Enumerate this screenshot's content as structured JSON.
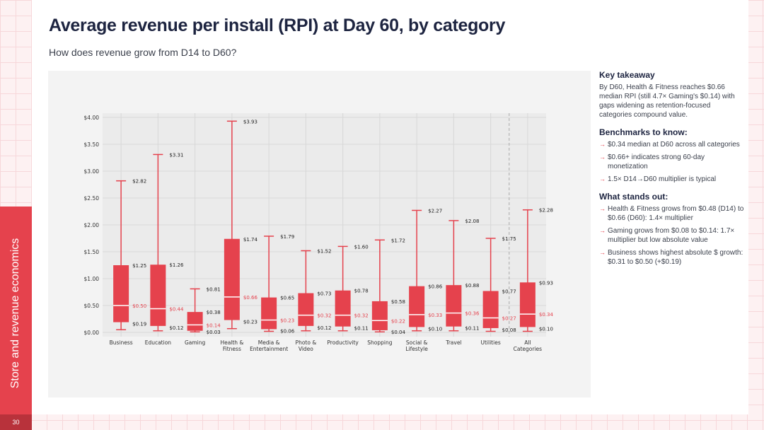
{
  "title": "Average revenue per install (RPI) at Day 60, by category",
  "subtitle": "How does revenue grow from D14 to D60?",
  "sidebar_label": "Store and revenue economics",
  "page_number": "30",
  "accent_color": "#e5424d",
  "takeaway": {
    "heading": "Key takeaway",
    "text": "By D60, Health & Fitness reaches $0.66 median RPI (still 4.7× Gaming's $0.14) with gaps widening as retention-focused categories compound value."
  },
  "benchmarks": {
    "heading": "Benchmarks to know:",
    "items": [
      "$0.34 median at D60 across all categories",
      "$0.66+ indicates strong 60-day monetization",
      "1.5× D14→D60 multiplier is typical"
    ]
  },
  "standout": {
    "heading": "What stands out:",
    "items": [
      "Health & Fitness grows from $0.48 (D14) to $0.66 (D60): 1.4× multiplier",
      "Gaming grows from $0.08 to $0.14: 1.7× multiplier but low absolute value",
      "Business shows highest absolute $ growth: $0.31 to $0.50 (+$0.19)"
    ]
  },
  "chart_data": {
    "type": "box",
    "ylim": [
      0,
      4
    ],
    "yticks": [
      {
        "value": 0,
        "label": "$0.00"
      },
      {
        "value": 0.5,
        "label": "$0.50"
      },
      {
        "value": 1.0,
        "label": "$1.00"
      },
      {
        "value": 1.5,
        "label": "$1.50"
      },
      {
        "value": 2.0,
        "label": "$2.00"
      },
      {
        "value": 2.5,
        "label": "$2.50"
      },
      {
        "value": 3.0,
        "label": "$3.00"
      },
      {
        "value": 3.5,
        "label": "$3.50"
      },
      {
        "value": 4.0,
        "label": "$4.00"
      }
    ],
    "grid": true,
    "box_color": "#e5424d",
    "categories": [
      {
        "name": "Business",
        "lines": [
          "Business"
        ],
        "whisker_low": 0.05,
        "q1": 0.19,
        "median": 0.5,
        "q3": 1.25,
        "whisker_high": 2.82,
        "labels": {
          "high": "$2.82",
          "q3": "$1.25",
          "median": "$0.50",
          "q1": "$0.19"
        }
      },
      {
        "name": "Education",
        "lines": [
          "Education"
        ],
        "whisker_low": 0.03,
        "q1": 0.12,
        "median": 0.44,
        "q3": 1.26,
        "whisker_high": 3.31,
        "labels": {
          "high": "$3.31",
          "q3": "$1.26",
          "median": "$0.44",
          "q1": "$0.12"
        }
      },
      {
        "name": "Gaming",
        "lines": [
          "Gaming"
        ],
        "whisker_low": 0.01,
        "q1": 0.03,
        "median": 0.14,
        "q3": 0.38,
        "whisker_high": 0.81,
        "labels": {
          "high": "$0.81",
          "q3": "$0.38",
          "median": "$0.14",
          "q1": "$0.03"
        }
      },
      {
        "name": "Health & Fitness",
        "lines": [
          "Health &",
          "Fitness"
        ],
        "whisker_low": 0.07,
        "q1": 0.23,
        "median": 0.66,
        "q3": 1.74,
        "whisker_high": 3.93,
        "labels": {
          "high": "$3.93",
          "q3": "$1.74",
          "median": "$0.66",
          "q1": "$0.23"
        }
      },
      {
        "name": "Media & Entertainment",
        "lines": [
          "Media &",
          "Entertainment"
        ],
        "whisker_low": 0.02,
        "q1": 0.06,
        "median": 0.23,
        "q3": 0.65,
        "whisker_high": 1.79,
        "labels": {
          "high": "$1.79",
          "q3": "$0.65",
          "median": "$0.23",
          "q1": "$0.06"
        }
      },
      {
        "name": "Photo & Video",
        "lines": [
          "Photo &",
          "Video"
        ],
        "whisker_low": 0.03,
        "q1": 0.12,
        "median": 0.32,
        "q3": 0.73,
        "whisker_high": 1.52,
        "labels": {
          "high": "$1.52",
          "q3": "$0.73",
          "median": "$0.32",
          "q1": "$0.12"
        }
      },
      {
        "name": "Productivity",
        "lines": [
          "Productivity"
        ],
        "whisker_low": 0.03,
        "q1": 0.11,
        "median": 0.32,
        "q3": 0.78,
        "whisker_high": 1.6,
        "labels": {
          "high": "$1.60",
          "q3": "$0.78",
          "median": "$0.32",
          "q1": "$0.11"
        }
      },
      {
        "name": "Shopping",
        "lines": [
          "Shopping"
        ],
        "whisker_low": 0.01,
        "q1": 0.04,
        "median": 0.22,
        "q3": 0.58,
        "whisker_high": 1.72,
        "labels": {
          "high": "$1.72",
          "q3": "$0.58",
          "median": "$0.22",
          "q1": "$0.04"
        }
      },
      {
        "name": "Social & Lifestyle",
        "lines": [
          "Social &",
          "Lifestyle"
        ],
        "whisker_low": 0.03,
        "q1": 0.1,
        "median": 0.33,
        "q3": 0.86,
        "whisker_high": 2.27,
        "labels": {
          "high": "$2.27",
          "q3": "$0.86",
          "median": "$0.33",
          "q1": "$0.10"
        }
      },
      {
        "name": "Travel",
        "lines": [
          "Travel"
        ],
        "whisker_low": 0.03,
        "q1": 0.11,
        "median": 0.36,
        "q3": 0.88,
        "whisker_high": 2.08,
        "labels": {
          "high": "$2.08",
          "q3": "$0.88",
          "median": "$0.36",
          "q1": "$0.11"
        }
      },
      {
        "name": "Utilities",
        "lines": [
          "Utilities"
        ],
        "whisker_low": 0.02,
        "q1": 0.08,
        "median": 0.27,
        "q3": 0.77,
        "whisker_high": 1.75,
        "labels": {
          "high": "$1.75",
          "q3": "$0.77",
          "median": "$0.27",
          "q1": "$0.08"
        }
      },
      {
        "name": "All Categories",
        "lines": [
          "All",
          "Categories"
        ],
        "whisker_low": 0.02,
        "q1": 0.1,
        "median": 0.34,
        "q3": 0.93,
        "whisker_high": 2.28,
        "labels": {
          "high": "$2.28",
          "q3": "$0.93",
          "median": "$0.34",
          "q1": "$0.10"
        }
      }
    ],
    "separator_before": "All Categories"
  }
}
